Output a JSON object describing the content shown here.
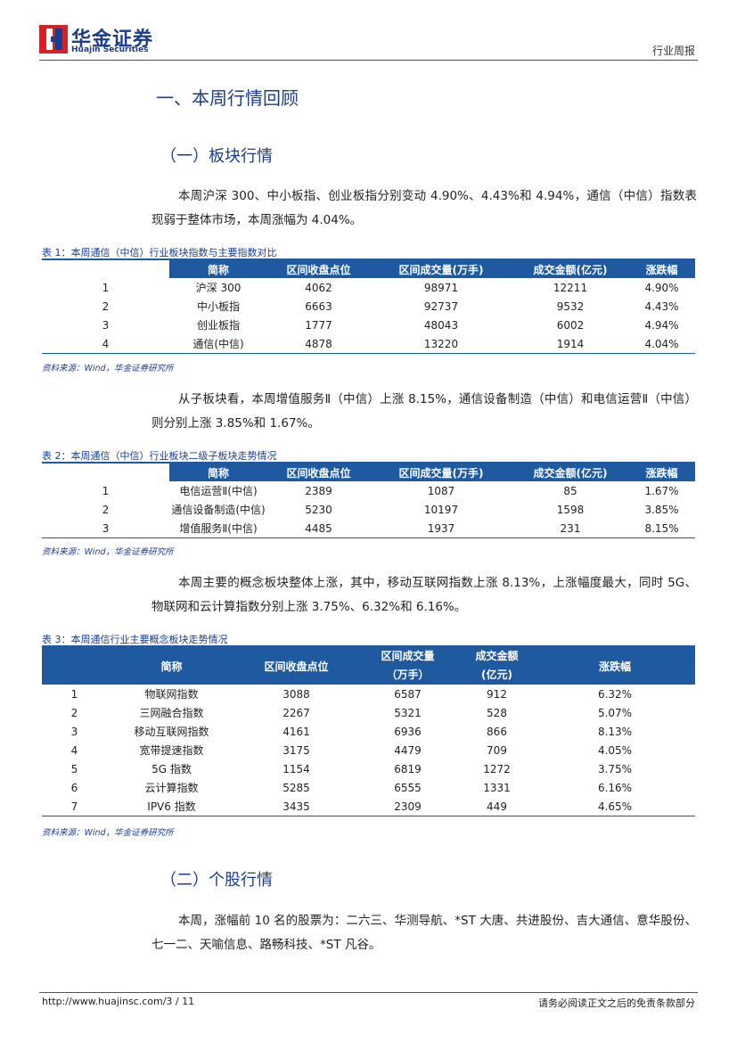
{
  "header": {
    "logo_cn": "华金证券",
    "logo_en": "Huajin Securities",
    "report_type": "行业周报"
  },
  "section_title": "一、本周行情回顾",
  "subsection_1": "（一）板块行情",
  "paragraph_1": "本周沪深 300、中小板指、创业板指分别变动 4.90%、4.43%和 4.94%，通信（中信）指数表现弱于整体市场，本周涨幅为 4.04%。",
  "table_1": {
    "caption": "表 1：本周通信（中信）行业板块指数与主要指数对比",
    "headers": [
      "简称",
      "区间收盘点位",
      "区间成交量(万手)",
      "成交金额(亿元)",
      "涨跌幅"
    ],
    "rows": [
      [
        "1",
        "沪深 300",
        "4062",
        "98971",
        "12211",
        "4.90%"
      ],
      [
        "2",
        "中小板指",
        "6663",
        "92737",
        "9532",
        "4.43%"
      ],
      [
        "3",
        "创业板指",
        "1777",
        "48043",
        "6002",
        "4.94%"
      ],
      [
        "4",
        "通信(中信)",
        "4878",
        "13220",
        "1914",
        "4.04%"
      ]
    ],
    "source": "资料来源：Wind，华金证券研究所"
  },
  "paragraph_2": "从子板块看，本周增值服务Ⅱ（中信）上涨 8.15%，通信设备制造（中信）和电信运营Ⅱ（中信）则分别上涨 3.85%和 1.67%。",
  "table_2": {
    "caption": "表 2：本周通信（中信）行业板块二级子板块走势情况",
    "headers": [
      "简称",
      "区间收盘点位",
      "区间成交量(万手)",
      "成交金额(亿元)",
      "涨跌幅"
    ],
    "rows": [
      [
        "1",
        "电信运营Ⅱ(中信)",
        "2389",
        "1087",
        "85",
        "1.67%"
      ],
      [
        "2",
        "通信设备制造(中信)",
        "5230",
        "10197",
        "1598",
        "3.85%"
      ],
      [
        "3",
        "增值服务Ⅱ(中信)",
        "4485",
        "1937",
        "231",
        "8.15%"
      ]
    ],
    "source": "资料来源：Wind，华金证券研究所"
  },
  "paragraph_3": "本周主要的概念板块整体上涨，其中，移动互联网指数上涨 8.13%，上涨幅度最大，同时 5G、物联网和云计算指数分别上涨 3.75%、6.32%和 6.16%。",
  "table_3": {
    "caption": "表 3：本周通信行业主要概念板块走势情况",
    "headers": [
      "简称",
      "区间收盘点位",
      [
        "区间成交量",
        "（万手）"
      ],
      [
        "成交金额",
        "(亿元)"
      ],
      "涨跌幅"
    ],
    "rows": [
      [
        "1",
        "物联网指数",
        "3088",
        "6587",
        "912",
        "6.32%"
      ],
      [
        "2",
        "三网融合指数",
        "2267",
        "5321",
        "528",
        "5.07%"
      ],
      [
        "3",
        "移动互联网指数",
        "4161",
        "6936",
        "866",
        "8.13%"
      ],
      [
        "4",
        "宽带提速指数",
        "3175",
        "4479",
        "709",
        "4.05%"
      ],
      [
        "5",
        "5G 指数",
        "1154",
        "6819",
        "1272",
        "3.75%"
      ],
      [
        "6",
        "云计算指数",
        "5285",
        "6555",
        "1331",
        "6.16%"
      ],
      [
        "7",
        "IPV6 指数",
        "3435",
        "2309",
        "449",
        "4.65%"
      ]
    ],
    "source": "资料来源：Wind，华金证券研究所"
  },
  "subsection_2": "（二）个股行情",
  "paragraph_4": "本周，涨幅前 10 名的股票为：二六三、华测导航、*ST 大唐、共进股份、吉大通信、意华股份、七一二、天喻信息、路畅科技、*ST 凡谷。",
  "footer": {
    "url": "http://www.huajinsc.com/3 / 11",
    "disclaimer": "请务必阅读正文之后的免责条款部分"
  }
}
